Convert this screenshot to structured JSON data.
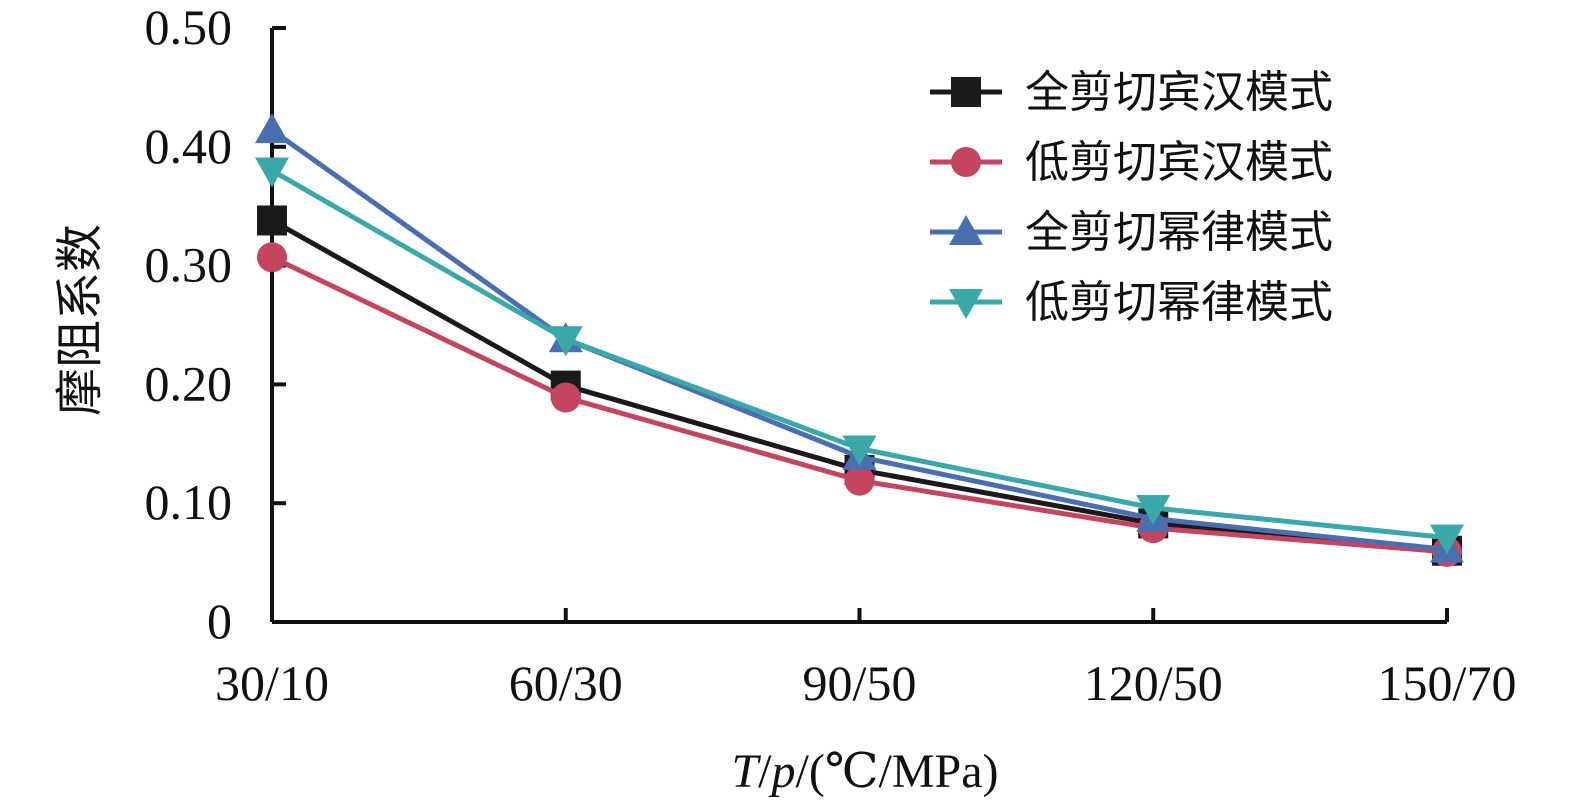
{
  "chart_data": {
    "type": "line",
    "title": "",
    "categories": [
      "30/10",
      "60/30",
      "90/50",
      "120/50",
      "150/70"
    ],
    "xlabel": {
      "var_t": "T",
      "sep1": "/",
      "var_p": "p",
      "units": "/(℃/MPa)"
    },
    "ylabel": "摩阻系数",
    "ylim": [
      0,
      0.5
    ],
    "yticks": [
      {
        "value": 0,
        "label": "0"
      },
      {
        "value": 0.1,
        "label": "0.10"
      },
      {
        "value": 0.2,
        "label": "0.20"
      },
      {
        "value": 0.3,
        "label": "0.30"
      },
      {
        "value": 0.4,
        "label": "0.40"
      },
      {
        "value": 0.5,
        "label": "0.50"
      }
    ],
    "grid": false,
    "legend_position": "top-right",
    "series": [
      {
        "name": "全剪切宾汉模式",
        "marker": "square",
        "color": "#1a1a1a",
        "values": [
          0.338,
          0.199,
          0.128,
          0.083,
          0.06
        ]
      },
      {
        "name": "低剪切宾汉模式",
        "marker": "circle",
        "color": "#c4455f",
        "values": [
          0.307,
          0.189,
          0.119,
          0.079,
          0.059
        ]
      },
      {
        "name": "全剪切幂律模式",
        "marker": "triangle-up",
        "color": "#4a6fb0",
        "values": [
          0.414,
          0.238,
          0.139,
          0.087,
          0.061
        ]
      },
      {
        "name": "低剪切幂律模式",
        "marker": "triangle-down",
        "color": "#3aa7a8",
        "values": [
          0.38,
          0.238,
          0.146,
          0.096,
          0.071
        ]
      }
    ]
  }
}
